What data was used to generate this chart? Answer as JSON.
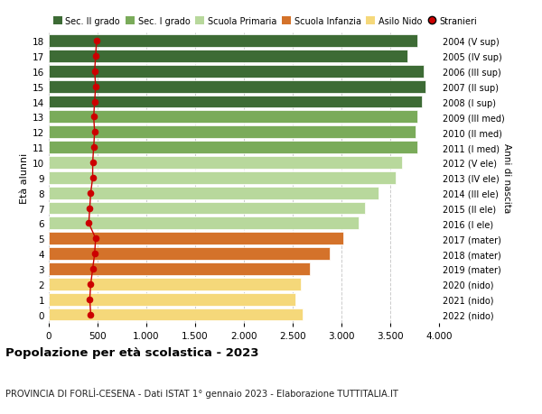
{
  "ages": [
    18,
    17,
    16,
    15,
    14,
    13,
    12,
    11,
    10,
    9,
    8,
    7,
    6,
    5,
    4,
    3,
    2,
    1,
    0
  ],
  "labels_right": [
    "2004 (V sup)",
    "2005 (IV sup)",
    "2006 (III sup)",
    "2007 (II sup)",
    "2008 (I sup)",
    "2009 (III med)",
    "2010 (II med)",
    "2011 (I med)",
    "2012 (V ele)",
    "2013 (IV ele)",
    "2014 (III ele)",
    "2015 (II ele)",
    "2016 (I ele)",
    "2017 (mater)",
    "2018 (mater)",
    "2019 (mater)",
    "2020 (nido)",
    "2021 (nido)",
    "2022 (nido)"
  ],
  "bar_values": [
    3780,
    3680,
    3840,
    3860,
    3820,
    3780,
    3760,
    3780,
    3620,
    3560,
    3380,
    3240,
    3180,
    3020,
    2880,
    2680,
    2580,
    2530,
    2600
  ],
  "stranieri": [
    490,
    480,
    470,
    480,
    470,
    460,
    470,
    460,
    450,
    450,
    430,
    420,
    410,
    480,
    470,
    450,
    430,
    420,
    430
  ],
  "bar_colors": [
    "#3d6b35",
    "#3d6b35",
    "#3d6b35",
    "#3d6b35",
    "#3d6b35",
    "#7aab5a",
    "#7aab5a",
    "#7aab5a",
    "#b8d89c",
    "#b8d89c",
    "#b8d89c",
    "#b8d89c",
    "#b8d89c",
    "#d4722a",
    "#d4722a",
    "#d4722a",
    "#f5d87a",
    "#f5d87a",
    "#f5d87a"
  ],
  "legend_labels": [
    "Sec. II grado",
    "Sec. I grado",
    "Scuola Primaria",
    "Scuola Infanzia",
    "Asilo Nido",
    "Stranieri"
  ],
  "legend_colors": [
    "#3d6b35",
    "#7aab5a",
    "#b8d89c",
    "#d4722a",
    "#f5d87a",
    "#cc0000"
  ],
  "stranieri_color": "#cc0000",
  "ylabel_left": "Età alunni",
  "ylabel_right": "Anni di nascita",
  "title": "Popolazione per età scolastica - 2023",
  "subtitle": "PROVINCIA DI FORLÌ-CESENA - Dati ISTAT 1° gennaio 2023 - Elaborazione TUTTITALIA.IT",
  "xlim": [
    0,
    4000
  ],
  "xticks": [
    0,
    500,
    1000,
    1500,
    2000,
    2500,
    3000,
    3500,
    4000
  ],
  "bg_color": "#ffffff",
  "bar_height": 0.82,
  "grid_color": "#cccccc"
}
